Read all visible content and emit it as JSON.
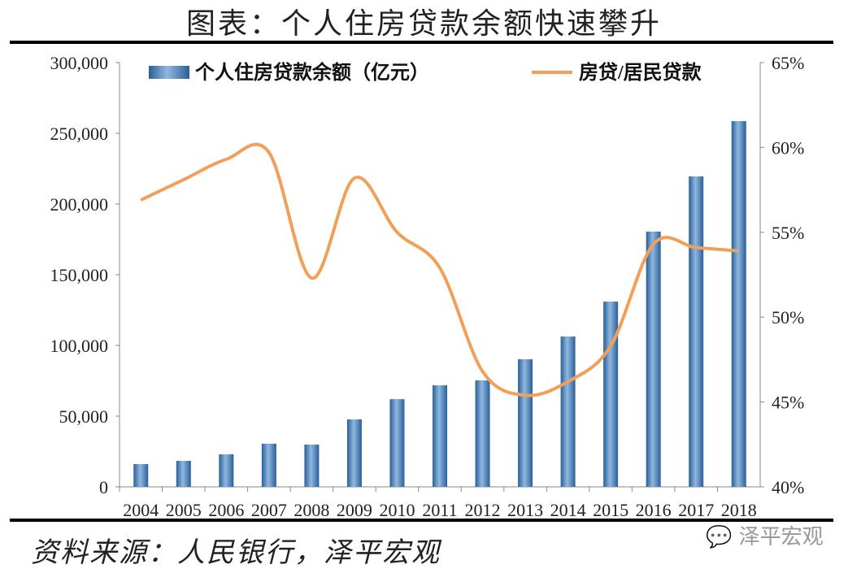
{
  "title": "图表：个人住房贷款余额快速攀升",
  "source": "资料来源：人民银行，泽平宏观",
  "watermark": "泽平宏观",
  "chart_data": {
    "type": "bar+line",
    "categories": [
      "2004",
      "2005",
      "2006",
      "2007",
      "2008",
      "2009",
      "2010",
      "2011",
      "2012",
      "2013",
      "2014",
      "2015",
      "2016",
      "2017",
      "2018"
    ],
    "series": [
      {
        "name": "个人住房贷款余额（亿元）",
        "type": "bar",
        "axis": "left",
        "color": "#3a78b8",
        "values": [
          16100,
          18400,
          23000,
          30500,
          29900,
          47700,
          62000,
          71800,
          75300,
          90200,
          106300,
          131000,
          180500,
          219500,
          258600
        ]
      },
      {
        "name": "房贷/居民贷款",
        "type": "line",
        "axis": "right",
        "color": "#f0a058",
        "values": [
          56.9,
          58.1,
          59.3,
          59.7,
          52.3,
          58.2,
          55.0,
          52.9,
          46.8,
          45.4,
          46.2,
          48.3,
          54.3,
          54.1,
          53.9
        ]
      }
    ],
    "left_axis": {
      "ylim": [
        0,
        300000
      ],
      "ticks": [
        "0",
        "50,000",
        "100,000",
        "150,000",
        "200,000",
        "250,000",
        "300,000"
      ]
    },
    "right_axis": {
      "ylim": [
        40,
        65
      ],
      "ticks": [
        "40%",
        "45%",
        "50%",
        "55%",
        "60%",
        "65%"
      ]
    },
    "grid": false,
    "legend": "top"
  }
}
